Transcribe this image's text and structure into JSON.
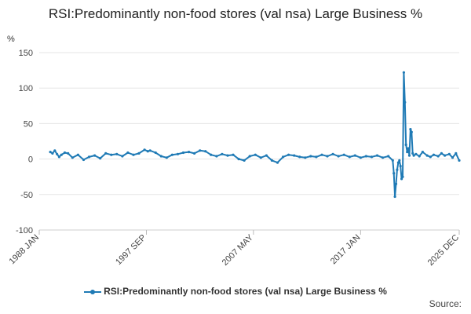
{
  "chart_data": {
    "type": "line",
    "title": "RSI:Predominantly non-food stores (val nsa) Large Business %",
    "ylabel": "%",
    "xlabel": "",
    "ylim": [
      -100,
      150
    ],
    "yticks": [
      -100,
      -50,
      0,
      50,
      100,
      150
    ],
    "xlim": [
      1988.0,
      2025.9
    ],
    "xticks": [
      {
        "label": "1988 JAN",
        "x": 1988.0
      },
      {
        "label": "1997 SEP",
        "x": 1997.67
      },
      {
        "label": "2007 MAY",
        "x": 2007.33
      },
      {
        "label": "2017 JAN",
        "x": 2017.0
      },
      {
        "label": "2025 DEC",
        "x": 2025.9
      }
    ],
    "grid": true,
    "legend_position": "bottom",
    "series": [
      {
        "name": "RSI:Predominantly non-food stores (val nsa) Large Business %",
        "color": "#1f7ab5",
        "points": [
          [
            1989.0,
            10
          ],
          [
            1989.2,
            8
          ],
          [
            1989.4,
            12
          ],
          [
            1989.6,
            7
          ],
          [
            1989.8,
            3
          ],
          [
            1990.0,
            6
          ],
          [
            1990.3,
            9
          ],
          [
            1990.6,
            8
          ],
          [
            1991.0,
            2
          ],
          [
            1991.5,
            6
          ],
          [
            1992.0,
            -1
          ],
          [
            1992.5,
            3
          ],
          [
            1993.0,
            5
          ],
          [
            1993.5,
            1
          ],
          [
            1994.0,
            8
          ],
          [
            1994.5,
            6
          ],
          [
            1995.0,
            7
          ],
          [
            1995.5,
            4
          ],
          [
            1996.0,
            9
          ],
          [
            1996.5,
            6
          ],
          [
            1997.0,
            8
          ],
          [
            1997.5,
            13
          ],
          [
            1997.8,
            11
          ],
          [
            1998.0,
            12
          ],
          [
            1998.5,
            9
          ],
          [
            1999.0,
            4
          ],
          [
            1999.5,
            2
          ],
          [
            2000.0,
            6
          ],
          [
            2000.5,
            7
          ],
          [
            2001.0,
            9
          ],
          [
            2001.5,
            10
          ],
          [
            2002.0,
            8
          ],
          [
            2002.5,
            12
          ],
          [
            2003.0,
            11
          ],
          [
            2003.5,
            6
          ],
          [
            2004.0,
            4
          ],
          [
            2004.5,
            7
          ],
          [
            2005.0,
            5
          ],
          [
            2005.5,
            6
          ],
          [
            2006.0,
            0
          ],
          [
            2006.5,
            -2
          ],
          [
            2007.0,
            4
          ],
          [
            2007.5,
            6
          ],
          [
            2008.0,
            2
          ],
          [
            2008.5,
            5
          ],
          [
            2009.0,
            -2
          ],
          [
            2009.5,
            -5
          ],
          [
            2010.0,
            3
          ],
          [
            2010.5,
            6
          ],
          [
            2011.0,
            5
          ],
          [
            2011.5,
            3
          ],
          [
            2012.0,
            2
          ],
          [
            2012.5,
            4
          ],
          [
            2013.0,
            3
          ],
          [
            2013.5,
            6
          ],
          [
            2014.0,
            4
          ],
          [
            2014.5,
            7
          ],
          [
            2015.0,
            4
          ],
          [
            2015.5,
            6
          ],
          [
            2016.0,
            3
          ],
          [
            2016.5,
            5
          ],
          [
            2017.0,
            2
          ],
          [
            2017.5,
            4
          ],
          [
            2018.0,
            3
          ],
          [
            2018.5,
            5
          ],
          [
            2019.0,
            2
          ],
          [
            2019.5,
            4
          ],
          [
            2019.9,
            -2
          ],
          [
            2020.0,
            -20
          ],
          [
            2020.1,
            -53
          ],
          [
            2020.2,
            -35
          ],
          [
            2020.3,
            -15
          ],
          [
            2020.4,
            -5
          ],
          [
            2020.5,
            -2
          ],
          [
            2020.6,
            -10
          ],
          [
            2020.7,
            -28
          ],
          [
            2020.8,
            -25
          ],
          [
            2020.9,
            122
          ],
          [
            2021.0,
            80
          ],
          [
            2021.1,
            20
          ],
          [
            2021.2,
            10
          ],
          [
            2021.3,
            15
          ],
          [
            2021.4,
            5
          ],
          [
            2021.5,
            42
          ],
          [
            2021.6,
            38
          ],
          [
            2021.7,
            8
          ],
          [
            2021.8,
            5
          ],
          [
            2022.0,
            7
          ],
          [
            2022.3,
            4
          ],
          [
            2022.6,
            10
          ],
          [
            2023.0,
            5
          ],
          [
            2023.3,
            3
          ],
          [
            2023.6,
            6
          ],
          [
            2024.0,
            4
          ],
          [
            2024.3,
            8
          ],
          [
            2024.6,
            5
          ],
          [
            2025.0,
            7
          ],
          [
            2025.3,
            2
          ],
          [
            2025.6,
            8
          ],
          [
            2025.9,
            -2
          ]
        ]
      }
    ]
  },
  "source_label": "Source:"
}
